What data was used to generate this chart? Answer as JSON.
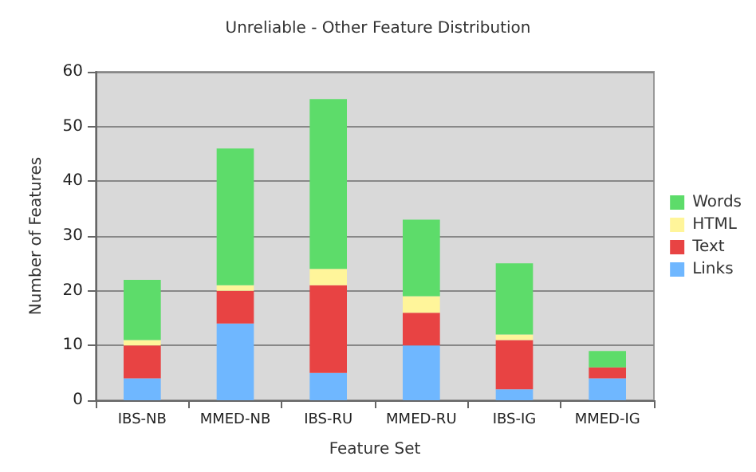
{
  "chart_data": {
    "type": "bar",
    "title": "Unreliable - Other Feature Distribution",
    "xlabel": "Feature Set",
    "ylabel": "Number of Features",
    "categories": [
      "IBS-NB",
      "MMED-NB",
      "IBS-RU",
      "MMED-RU",
      "IBS-IG",
      "MMED-IG"
    ],
    "stacked": true,
    "series": [
      {
        "name": "Links",
        "color": "#6fb7ff",
        "values": [
          4,
          14,
          5,
          10,
          2,
          4
        ]
      },
      {
        "name": "Text",
        "color": "#e84343",
        "values": [
          6,
          6,
          16,
          6,
          9,
          2
        ]
      },
      {
        "name": "HTML",
        "color": "#fff59a",
        "values": [
          1,
          1,
          3,
          3,
          1,
          0
        ]
      },
      {
        "name": "Words",
        "color": "#5ddc6a",
        "values": [
          11,
          25,
          31,
          14,
          13,
          3
        ]
      }
    ],
    "ylim": [
      0,
      60
    ],
    "yticks": [
      0,
      10,
      20,
      30,
      40,
      50,
      60
    ],
    "grid": "y",
    "legend": "right"
  }
}
